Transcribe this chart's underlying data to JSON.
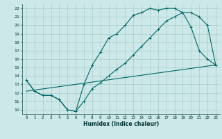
{
  "xlabel": "Humidex (Indice chaleur)",
  "bg_color": "#cce8e8",
  "grid_color": "#aacccc",
  "line_color": "#006666",
  "xlim": [
    -0.5,
    23.5
  ],
  "ylim": [
    9.5,
    22.5
  ],
  "xticks": [
    0,
    1,
    2,
    3,
    4,
    5,
    6,
    7,
    8,
    9,
    10,
    11,
    12,
    13,
    14,
    15,
    16,
    17,
    18,
    19,
    20,
    21,
    22,
    23
  ],
  "yticks": [
    10,
    11,
    12,
    13,
    14,
    15,
    16,
    17,
    18,
    19,
    20,
    21,
    22
  ],
  "line1_x": [
    0,
    1,
    2,
    3,
    4,
    5,
    6,
    7,
    8,
    9,
    10,
    11,
    12,
    13,
    14,
    15,
    16,
    17,
    18,
    19,
    20,
    21,
    22,
    23
  ],
  "line1_y": [
    13.5,
    12.2,
    11.7,
    11.7,
    11.2,
    10.0,
    9.8,
    11.0,
    12.5,
    13.2,
    14.0,
    14.8,
    15.5,
    16.5,
    17.5,
    18.5,
    19.5,
    20.5,
    21.0,
    21.5,
    21.5,
    21.0,
    20.0,
    15.3
  ],
  "line2_x": [
    0,
    1,
    2,
    3,
    4,
    5,
    6,
    7,
    8,
    9,
    10,
    11,
    12,
    13,
    14,
    15,
    16,
    17,
    18,
    19,
    20,
    21,
    22,
    23
  ],
  "line2_y": [
    13.5,
    12.2,
    11.7,
    11.7,
    11.2,
    10.0,
    9.8,
    13.0,
    15.3,
    16.8,
    18.5,
    19.0,
    20.0,
    21.2,
    21.5,
    22.0,
    21.8,
    22.0,
    22.0,
    21.5,
    19.8,
    17.0,
    16.0,
    15.3
  ],
  "line3_x": [
    0,
    23
  ],
  "line3_y": [
    12.2,
    15.3
  ]
}
